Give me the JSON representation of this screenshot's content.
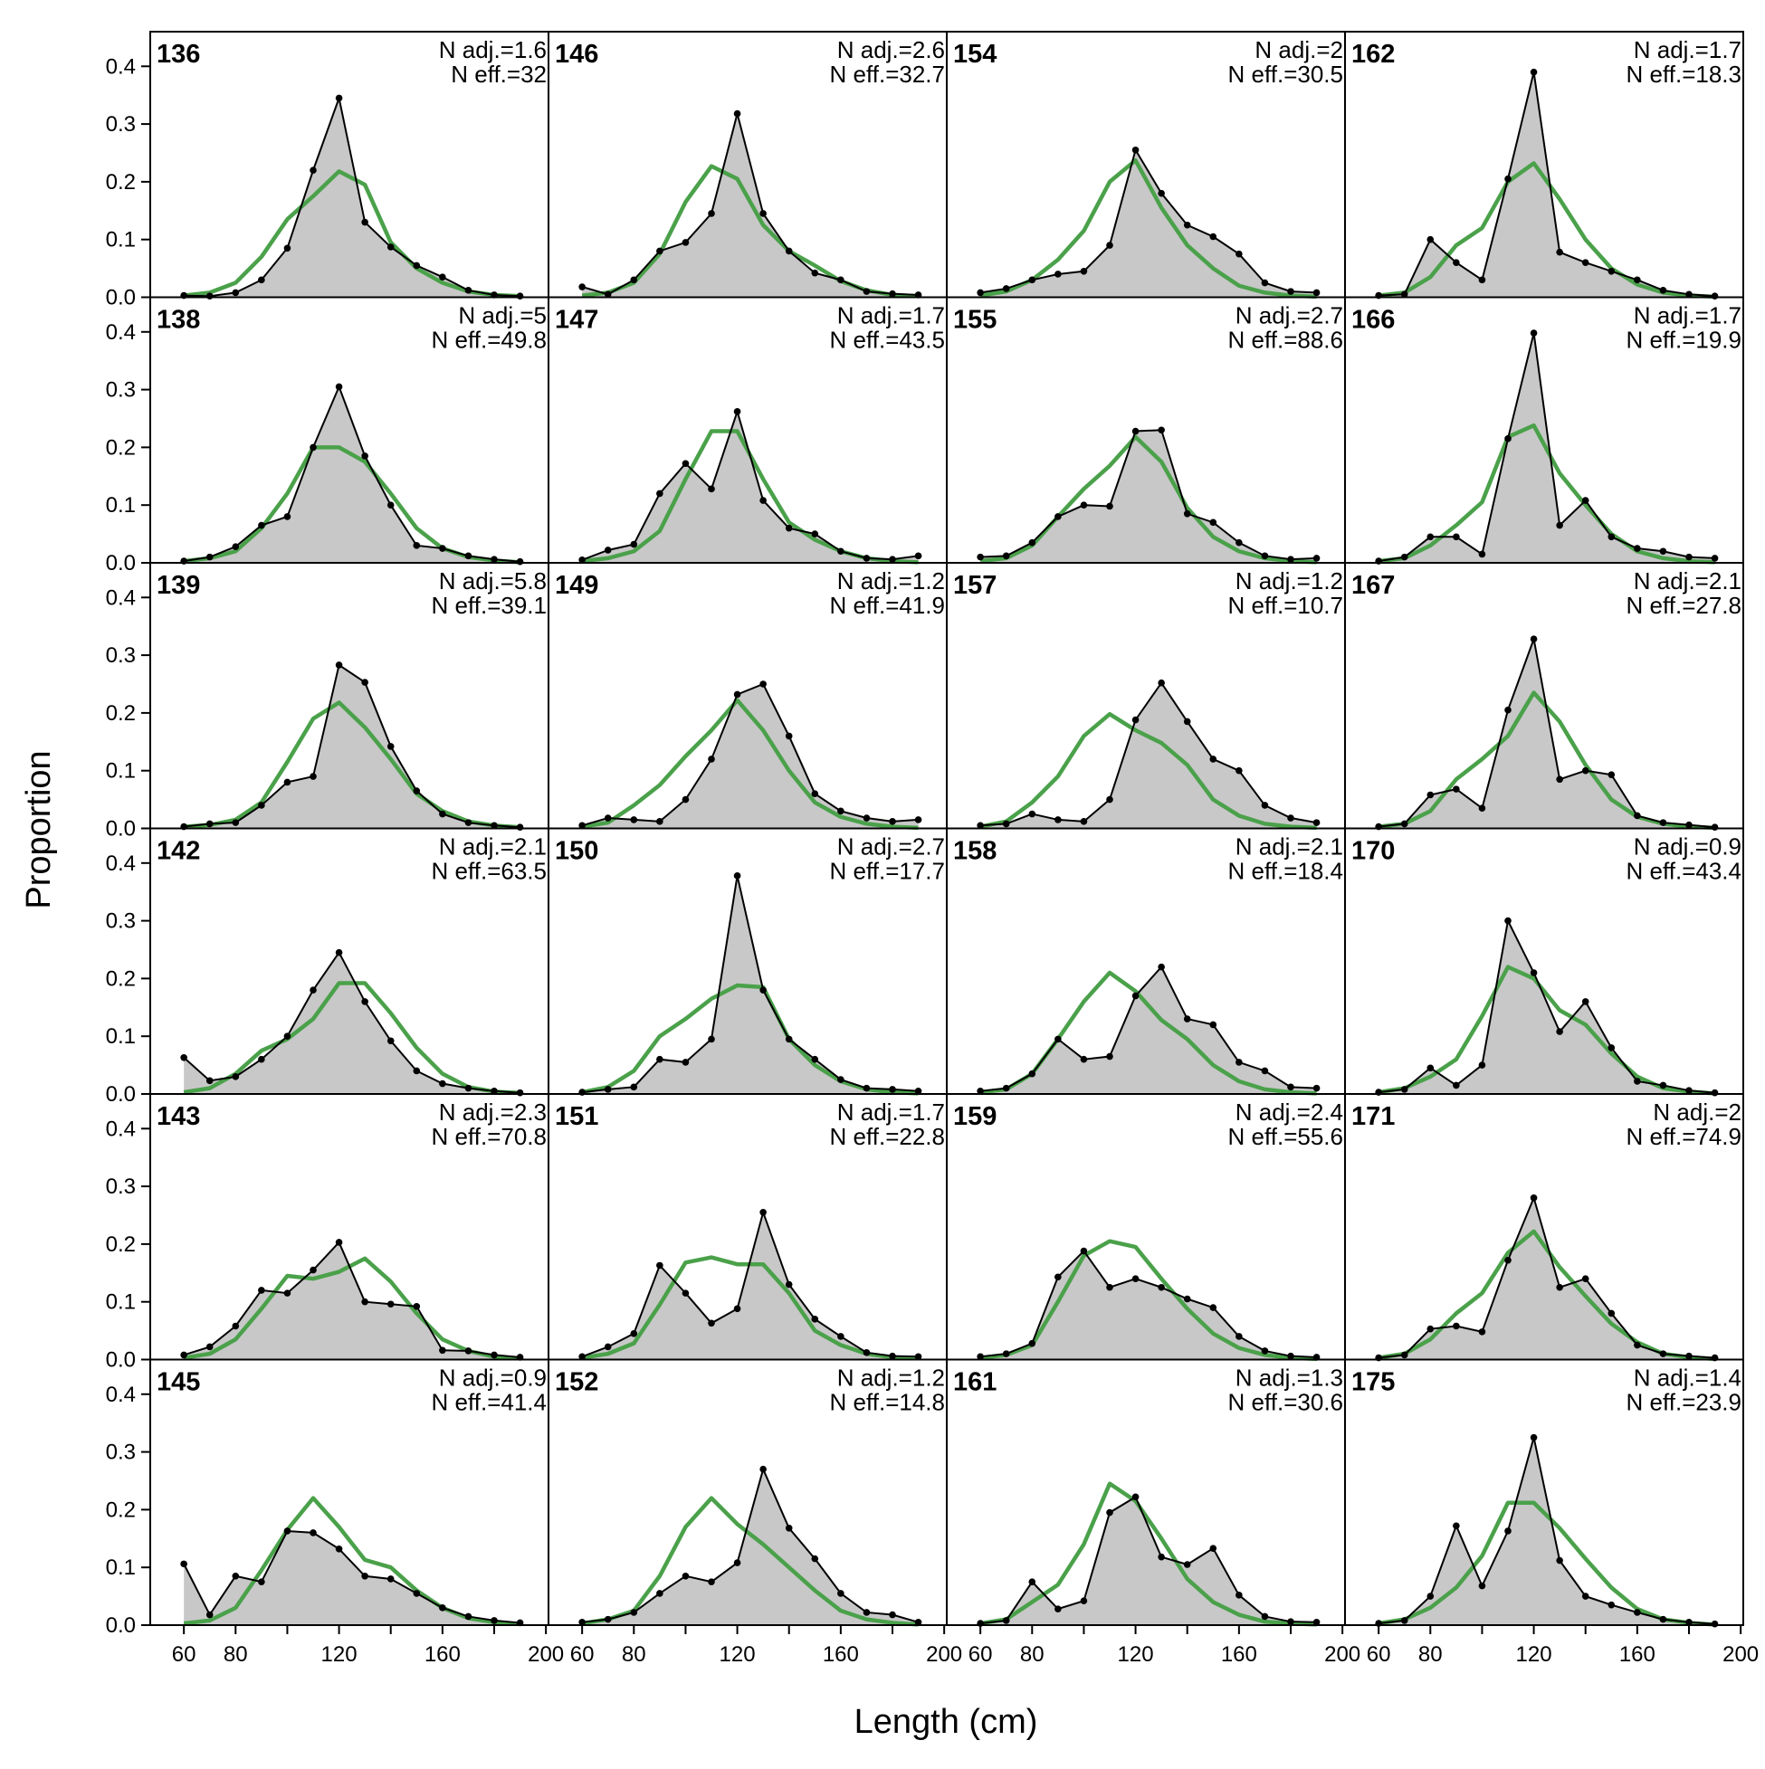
{
  "figure": {
    "ylabel": "Proportion",
    "xlabel": "Length (cm)",
    "note_adj_prefix": "N adj.=",
    "note_eff_prefix": "N eff.=",
    "xticks": [
      60,
      80,
      120,
      160,
      200
    ],
    "yticks": [
      0.0,
      0.1,
      0.2,
      0.3,
      0.4
    ],
    "ytick_labels": [
      "0.0",
      "0.1",
      "0.2",
      "0.3",
      "0.4"
    ],
    "colors": {
      "observed_fill": "#c8c8c8",
      "observed_line": "#000000",
      "expected_line": "#4aa14a",
      "baseline": "#b0b0b0"
    }
  },
  "chart_data": {
    "type": "area",
    "layout": {
      "columns": 4,
      "rows": 6
    },
    "x": [
      60,
      70,
      80,
      90,
      100,
      110,
      120,
      130,
      140,
      150,
      160,
      170,
      180,
      190
    ],
    "xlim": [
      47,
      201
    ],
    "ylim": [
      0,
      0.46
    ],
    "series_legend": {
      "observed": "",
      "expected": ""
    },
    "panels": [
      {
        "label": "136",
        "n_adj": "1.6",
        "n_eff": "32",
        "obs": [
          0.003,
          0.002,
          0.008,
          0.03,
          0.085,
          0.22,
          0.345,
          0.13,
          0.087,
          0.055,
          0.035,
          0.012,
          0.004,
          0.002
        ],
        "exp": [
          0.003,
          0.008,
          0.025,
          0.07,
          0.135,
          0.175,
          0.218,
          0.195,
          0.095,
          0.05,
          0.025,
          0.01,
          0.004,
          0.002
        ]
      },
      {
        "label": "146",
        "n_adj": "2.6",
        "n_eff": "32.7",
        "obs": [
          0.018,
          0.005,
          0.03,
          0.08,
          0.095,
          0.145,
          0.318,
          0.145,
          0.08,
          0.042,
          0.03,
          0.01,
          0.006,
          0.004
        ],
        "exp": [
          0.003,
          0.008,
          0.025,
          0.075,
          0.165,
          0.227,
          0.205,
          0.125,
          0.08,
          0.055,
          0.028,
          0.012,
          0.004,
          0.002
        ]
      },
      {
        "label": "154",
        "n_adj": "2",
        "n_eff": "30.5",
        "obs": [
          0.008,
          0.015,
          0.03,
          0.04,
          0.045,
          0.09,
          0.255,
          0.18,
          0.125,
          0.105,
          0.075,
          0.025,
          0.01,
          0.008
        ],
        "exp": [
          0.003,
          0.01,
          0.03,
          0.065,
          0.115,
          0.2,
          0.237,
          0.155,
          0.09,
          0.05,
          0.02,
          0.008,
          0.003,
          0.001
        ]
      },
      {
        "label": "162",
        "n_adj": "1.7",
        "n_eff": "18.3",
        "obs": [
          0.003,
          0.005,
          0.1,
          0.06,
          0.03,
          0.205,
          0.39,
          0.078,
          0.06,
          0.045,
          0.03,
          0.012,
          0.005,
          0.002
        ],
        "exp": [
          0.003,
          0.008,
          0.035,
          0.09,
          0.12,
          0.2,
          0.232,
          0.17,
          0.1,
          0.05,
          0.022,
          0.008,
          0.003,
          0.001
        ]
      },
      {
        "label": "138",
        "n_adj": "5",
        "n_eff": "49.8",
        "obs": [
          0.003,
          0.01,
          0.028,
          0.065,
          0.08,
          0.2,
          0.305,
          0.185,
          0.1,
          0.03,
          0.025,
          0.012,
          0.006,
          0.002
        ],
        "exp": [
          0.003,
          0.008,
          0.02,
          0.06,
          0.12,
          0.2,
          0.2,
          0.175,
          0.12,
          0.06,
          0.025,
          0.01,
          0.004,
          0.001
        ]
      },
      {
        "label": "147",
        "n_adj": "1.7",
        "n_eff": "43.5",
        "obs": [
          0.005,
          0.022,
          0.032,
          0.12,
          0.172,
          0.128,
          0.262,
          0.108,
          0.06,
          0.05,
          0.02,
          0.008,
          0.006,
          0.012
        ],
        "exp": [
          0.003,
          0.008,
          0.02,
          0.055,
          0.145,
          0.228,
          0.228,
          0.145,
          0.07,
          0.04,
          0.02,
          0.008,
          0.003,
          0.001
        ]
      },
      {
        "label": "155",
        "n_adj": "2.7",
        "n_eff": "88.6",
        "obs": [
          0.01,
          0.012,
          0.035,
          0.08,
          0.1,
          0.098,
          0.228,
          0.23,
          0.085,
          0.07,
          0.035,
          0.012,
          0.006,
          0.008
        ],
        "exp": [
          0.003,
          0.008,
          0.03,
          0.08,
          0.128,
          0.168,
          0.218,
          0.175,
          0.095,
          0.045,
          0.02,
          0.008,
          0.003,
          0.001
        ]
      },
      {
        "label": "166",
        "n_adj": "1.7",
        "n_eff": "19.9",
        "obs": [
          0.003,
          0.01,
          0.045,
          0.045,
          0.015,
          0.215,
          0.398,
          0.065,
          0.108,
          0.045,
          0.025,
          0.02,
          0.01,
          0.008
        ],
        "exp": [
          0.003,
          0.008,
          0.03,
          0.065,
          0.105,
          0.218,
          0.238,
          0.155,
          0.1,
          0.05,
          0.02,
          0.008,
          0.003,
          0.001
        ]
      },
      {
        "label": "139",
        "n_adj": "5.8",
        "n_eff": "39.1",
        "obs": [
          0.003,
          0.008,
          0.01,
          0.04,
          0.08,
          0.09,
          0.283,
          0.253,
          0.142,
          0.065,
          0.025,
          0.01,
          0.005,
          0.002
        ],
        "exp": [
          0.003,
          0.006,
          0.015,
          0.045,
          0.115,
          0.19,
          0.218,
          0.175,
          0.12,
          0.06,
          0.03,
          0.012,
          0.005,
          0.002
        ]
      },
      {
        "label": "149",
        "n_adj": "1.2",
        "n_eff": "41.9",
        "obs": [
          0.005,
          0.018,
          0.015,
          0.012,
          0.05,
          0.12,
          0.232,
          0.25,
          0.16,
          0.06,
          0.03,
          0.018,
          0.012,
          0.015
        ],
        "exp": [
          0.003,
          0.01,
          0.04,
          0.075,
          0.125,
          0.17,
          0.222,
          0.17,
          0.1,
          0.045,
          0.02,
          0.008,
          0.003,
          0.001
        ]
      },
      {
        "label": "157",
        "n_adj": "1.2",
        "n_eff": "10.7",
        "obs": [
          0.005,
          0.008,
          0.025,
          0.015,
          0.012,
          0.05,
          0.188,
          0.252,
          0.185,
          0.12,
          0.1,
          0.04,
          0.018,
          0.01
        ],
        "exp": [
          0.003,
          0.012,
          0.045,
          0.09,
          0.16,
          0.198,
          0.17,
          0.148,
          0.11,
          0.05,
          0.022,
          0.008,
          0.003,
          0.001
        ]
      },
      {
        "label": "167",
        "n_adj": "2.1",
        "n_eff": "27.8",
        "obs": [
          0.003,
          0.008,
          0.058,
          0.068,
          0.035,
          0.205,
          0.328,
          0.085,
          0.1,
          0.093,
          0.022,
          0.01,
          0.006,
          0.002
        ],
        "exp": [
          0.003,
          0.008,
          0.03,
          0.085,
          0.12,
          0.16,
          0.235,
          0.185,
          0.11,
          0.05,
          0.02,
          0.008,
          0.003,
          0.001
        ]
      },
      {
        "label": "142",
        "n_adj": "2.1",
        "n_eff": "63.5",
        "obs": [
          0.063,
          0.023,
          0.03,
          0.06,
          0.1,
          0.18,
          0.245,
          0.16,
          0.092,
          0.04,
          0.018,
          0.01,
          0.005,
          0.002
        ],
        "exp": [
          0.003,
          0.01,
          0.035,
          0.075,
          0.095,
          0.13,
          0.192,
          0.192,
          0.14,
          0.08,
          0.035,
          0.012,
          0.004,
          0.002
        ]
      },
      {
        "label": "150",
        "n_adj": "2.7",
        "n_eff": "17.7",
        "obs": [
          0.003,
          0.008,
          0.012,
          0.06,
          0.055,
          0.095,
          0.378,
          0.18,
          0.095,
          0.06,
          0.025,
          0.01,
          0.008,
          0.005
        ],
        "exp": [
          0.003,
          0.012,
          0.04,
          0.1,
          0.13,
          0.165,
          0.188,
          0.185,
          0.095,
          0.05,
          0.022,
          0.008,
          0.003,
          0.001
        ]
      },
      {
        "label": "158",
        "n_adj": "2.1",
        "n_eff": "18.4",
        "obs": [
          0.005,
          0.01,
          0.035,
          0.095,
          0.06,
          0.065,
          0.17,
          0.22,
          0.13,
          0.12,
          0.055,
          0.04,
          0.012,
          0.01
        ],
        "exp": [
          0.003,
          0.008,
          0.035,
          0.095,
          0.16,
          0.21,
          0.178,
          0.128,
          0.095,
          0.05,
          0.022,
          0.008,
          0.003,
          0.001
        ]
      },
      {
        "label": "170",
        "n_adj": "0.9",
        "n_eff": "43.4",
        "obs": [
          0.003,
          0.008,
          0.045,
          0.015,
          0.05,
          0.3,
          0.21,
          0.108,
          0.16,
          0.08,
          0.022,
          0.015,
          0.006,
          0.002
        ],
        "exp": [
          0.003,
          0.01,
          0.03,
          0.06,
          0.135,
          0.22,
          0.2,
          0.145,
          0.12,
          0.07,
          0.03,
          0.01,
          0.004,
          0.001
        ]
      },
      {
        "label": "143",
        "n_adj": "2.3",
        "n_eff": "70.8",
        "obs": [
          0.008,
          0.022,
          0.058,
          0.12,
          0.115,
          0.155,
          0.203,
          0.1,
          0.096,
          0.092,
          0.016,
          0.015,
          0.008,
          0.004
        ],
        "exp": [
          0.003,
          0.01,
          0.035,
          0.088,
          0.145,
          0.14,
          0.152,
          0.175,
          0.135,
          0.08,
          0.035,
          0.015,
          0.005,
          0.002
        ]
      },
      {
        "label": "151",
        "n_adj": "1.7",
        "n_eff": "22.8",
        "obs": [
          0.005,
          0.022,
          0.045,
          0.163,
          0.115,
          0.063,
          0.088,
          0.255,
          0.13,
          0.07,
          0.04,
          0.012,
          0.006,
          0.005
        ],
        "exp": [
          0.003,
          0.01,
          0.028,
          0.095,
          0.168,
          0.177,
          0.165,
          0.165,
          0.115,
          0.05,
          0.025,
          0.01,
          0.004,
          0.002
        ]
      },
      {
        "label": "159",
        "n_adj": "2.4",
        "n_eff": "55.6",
        "obs": [
          0.005,
          0.01,
          0.028,
          0.143,
          0.188,
          0.125,
          0.14,
          0.125,
          0.105,
          0.09,
          0.04,
          0.015,
          0.006,
          0.004
        ],
        "exp": [
          0.003,
          0.008,
          0.025,
          0.1,
          0.18,
          0.205,
          0.195,
          0.14,
          0.088,
          0.045,
          0.02,
          0.008,
          0.003,
          0.001
        ]
      },
      {
        "label": "171",
        "n_adj": "2",
        "n_eff": "74.9",
        "obs": [
          0.003,
          0.008,
          0.053,
          0.058,
          0.048,
          0.172,
          0.28,
          0.125,
          0.14,
          0.08,
          0.025,
          0.01,
          0.006,
          0.003
        ],
        "exp": [
          0.003,
          0.01,
          0.035,
          0.08,
          0.115,
          0.185,
          0.222,
          0.16,
          0.11,
          0.062,
          0.03,
          0.01,
          0.004,
          0.001
        ]
      },
      {
        "label": "145",
        "n_adj": "0.9",
        "n_eff": "41.4",
        "obs": [
          0.106,
          0.018,
          0.085,
          0.075,
          0.163,
          0.16,
          0.132,
          0.085,
          0.08,
          0.055,
          0.03,
          0.015,
          0.008,
          0.004
        ],
        "exp": [
          0.003,
          0.008,
          0.03,
          0.095,
          0.165,
          0.22,
          0.17,
          0.113,
          0.1,
          0.06,
          0.03,
          0.012,
          0.005,
          0.002
        ]
      },
      {
        "label": "152",
        "n_adj": "1.2",
        "n_eff": "14.8",
        "obs": [
          0.005,
          0.01,
          0.022,
          0.055,
          0.085,
          0.075,
          0.108,
          0.27,
          0.168,
          0.115,
          0.055,
          0.022,
          0.018,
          0.005
        ],
        "exp": [
          0.003,
          0.01,
          0.025,
          0.085,
          0.17,
          0.22,
          0.175,
          0.14,
          0.1,
          0.06,
          0.025,
          0.01,
          0.004,
          0.001
        ]
      },
      {
        "label": "161",
        "n_adj": "1.3",
        "n_eff": "30.6",
        "obs": [
          0.003,
          0.008,
          0.075,
          0.028,
          0.042,
          0.195,
          0.222,
          0.118,
          0.105,
          0.133,
          0.052,
          0.015,
          0.006,
          0.005
        ],
        "exp": [
          0.003,
          0.01,
          0.04,
          0.07,
          0.14,
          0.245,
          0.215,
          0.15,
          0.08,
          0.04,
          0.018,
          0.006,
          0.003,
          0.001
        ]
      },
      {
        "label": "175",
        "n_adj": "1.4",
        "n_eff": "23.9",
        "obs": [
          0.003,
          0.008,
          0.05,
          0.172,
          0.068,
          0.163,
          0.325,
          0.112,
          0.05,
          0.035,
          0.022,
          0.01,
          0.005,
          0.002
        ],
        "exp": [
          0.003,
          0.01,
          0.03,
          0.065,
          0.12,
          0.212,
          0.212,
          0.168,
          0.115,
          0.065,
          0.028,
          0.01,
          0.004,
          0.001
        ]
      }
    ]
  }
}
